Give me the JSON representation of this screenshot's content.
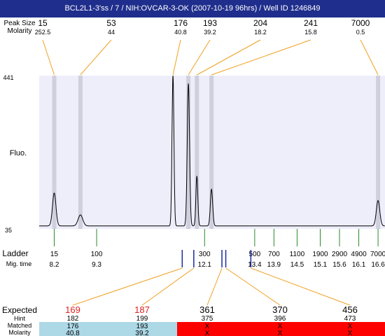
{
  "title": "BCL2L1-3'ss / 7 / NIH:OVCAR-3-OK (2007-10-19 96hrs) / Well ID 1246849",
  "labels": {
    "peak_size_row": "Peak Size",
    "molarity_row": "Molarity",
    "fluo": "Fluo.",
    "y_top": "441",
    "y_bottom": "35",
    "ladder": "Ladder",
    "mig_time": "Mig. time",
    "expected": "Expected",
    "hint": "Hint",
    "matched": "Matched",
    "molarity_bottom": "Molarity"
  },
  "colors": {
    "title_bg": "#1f2e8c",
    "plot_bg": "#eeeefb",
    "peak_band": "#cfcfdd",
    "connector": "#f0a020",
    "ladder_tick": "#2a8a2a",
    "marker": "#1a2aa0",
    "expected_hit": "#e02020",
    "matched_ok": "#add8e6",
    "matched_fail": "#ff0000"
  },
  "chart_data": {
    "type": "line",
    "ylim": [
      35,
      441
    ],
    "peaks": [
      {
        "size": "15",
        "molarity": "252.5",
        "time": 8.2,
        "height": 130
      },
      {
        "size": "53",
        "molarity": "44",
        "time": 8.88,
        "height": 72
      },
      {
        "size": "176",
        "molarity": "40.8",
        "time": 11.28,
        "height": 441
      },
      {
        "size": "193",
        "molarity": "39.2",
        "time": 11.68,
        "height": 420
      },
      {
        "size": "204",
        "molarity": "18.2",
        "time": 11.9,
        "height": 175
      },
      {
        "size": "241",
        "molarity": "15.8",
        "time": 12.28,
        "height": 140
      },
      {
        "size": "7000",
        "molarity": "0.5",
        "time": 16.6,
        "height": 110
      }
    ],
    "ladder": [
      {
        "bp": "15",
        "time": "8.2"
      },
      {
        "bp": "100",
        "time": "9.3"
      },
      {
        "bp": "300",
        "time": "12.1"
      },
      {
        "bp": "500",
        "time": "13.4"
      },
      {
        "bp": "700",
        "time": "13.9"
      },
      {
        "bp": "1100",
        "time": "14.5"
      },
      {
        "bp": "1900",
        "time": "15.1"
      },
      {
        "bp": "2900",
        "time": "15.6"
      },
      {
        "bp": "4900",
        "time": "16.1"
      },
      {
        "bp": "7000",
        "time": "16.6"
      }
    ],
    "expected": [
      {
        "expected": "169",
        "hint": "182",
        "matched": "176",
        "molarity": "40.8",
        "ok": true,
        "time": 11.52
      },
      {
        "expected": "187",
        "hint": "199",
        "matched": "193",
        "molarity": "39.2",
        "ok": true,
        "time": 11.82
      },
      {
        "expected": "361",
        "hint": "375",
        "matched": "X",
        "molarity": "X",
        "ok": false,
        "time": 12.55
      },
      {
        "expected": "370",
        "hint": "396",
        "matched": "X",
        "molarity": "X",
        "ok": false,
        "time": 12.65
      },
      {
        "expected": "456",
        "hint": "473",
        "matched": "X",
        "molarity": "X",
        "ok": false,
        "time": 13.3
      }
    ]
  }
}
